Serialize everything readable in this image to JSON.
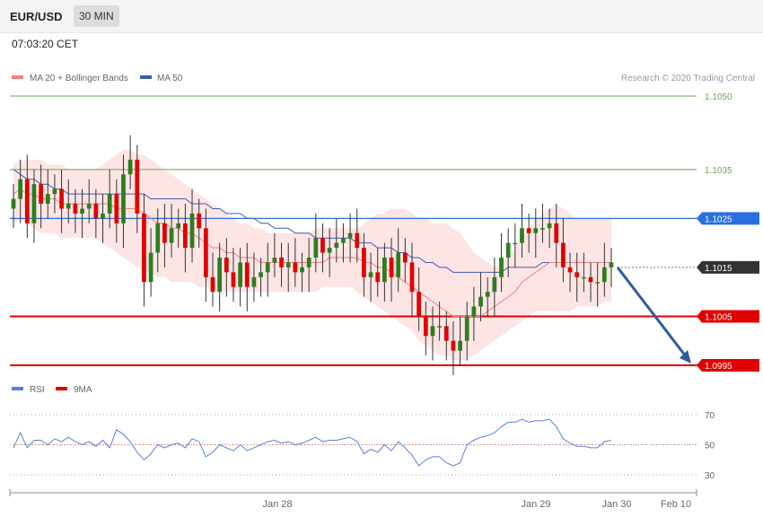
{
  "header": {
    "symbol": "EUR/USD",
    "timeframe": "30 MIN",
    "time": "07:03:20 CET"
  },
  "legend": {
    "ma20_bb": "MA 20 + Bollinger Bands",
    "ma50": "MA 50",
    "copyright": "Research © 2020 Trading Central"
  },
  "rsi_legend": {
    "rsi": "RSI",
    "ma9": "9MA"
  },
  "colors": {
    "bull": "#2e7d1e",
    "bear": "#e00000",
    "band": "#fde0e0",
    "ma20": "#f08080",
    "ma50": "#3a5ea8",
    "support": "#e00000",
    "resistance": "#2a6fe0",
    "green_level": "#6aa84f",
    "current": "#333333"
  },
  "chart_data": [
    {
      "type": "candlestick",
      "title": "EUR/USD 30 MIN",
      "xlabel": "",
      "ylabel": "",
      "ylim": [
        1.0991,
        1.1059
      ],
      "x_ticks": [
        "Jan 28",
        "Jan 29",
        "Jan 30",
        "Feb 10"
      ],
      "y_ticks": [
        1.0995,
        1.1005,
        1.1015,
        1.1025,
        1.1035,
        1.105
      ],
      "levels": [
        {
          "value": 1.105,
          "label": "1.1050",
          "kind": "green"
        },
        {
          "value": 1.1035,
          "label": "1.1035",
          "kind": "green"
        },
        {
          "value": 1.1025,
          "label": "1.1025",
          "kind": "resistance"
        },
        {
          "value": 1.1015,
          "label": "1.1015",
          "kind": "current"
        },
        {
          "value": 1.1005,
          "label": "1.1005",
          "kind": "support"
        },
        {
          "value": 1.0995,
          "label": "1.0995",
          "kind": "support"
        }
      ],
      "forecast_arrow": {
        "from": 1.1015,
        "to": 1.0995
      },
      "closes": [
        1.1029,
        1.1033,
        1.1024,
        1.1032,
        1.1028,
        1.103,
        1.1031,
        1.1027,
        1.1028,
        1.1026,
        1.1027,
        1.1028,
        1.1025,
        1.1026,
        1.103,
        1.1024,
        1.1034,
        1.1037,
        1.1026,
        1.1012,
        1.1018,
        1.1024,
        1.102,
        1.1023,
        1.1024,
        1.1019,
        1.1026,
        1.1023,
        1.1013,
        1.101,
        1.1017,
        1.1014,
        1.1011,
        1.1016,
        1.1011,
        1.1013,
        1.1014,
        1.1016,
        1.1017,
        1.1015,
        1.1016,
        1.1014,
        1.1015,
        1.1017,
        1.1021,
        1.1018,
        1.1019,
        1.102,
        1.1021,
        1.1022,
        1.1019,
        1.1013,
        1.1014,
        1.1012,
        1.1017,
        1.1013,
        1.1018,
        1.1016,
        1.101,
        1.1005,
        1.1001,
        1.1003,
        1.1003,
        1.1,
        1.0998,
        1.1,
        1.1005,
        1.1007,
        1.1009,
        1.101,
        1.1013,
        1.1017,
        1.102,
        1.102,
        1.1023,
        1.1022,
        1.1023,
        1.1023,
        1.1024,
        1.102,
        1.1015,
        1.1014,
        1.1013,
        1.1013,
        1.1012,
        1.1012,
        1.1015,
        1.1016
      ],
      "ma20": [
        1.103,
        1.1031,
        1.103,
        1.103,
        1.1029,
        1.1029,
        1.1029,
        1.1028,
        1.1028,
        1.1028,
        1.1028,
        1.1028,
        1.1028,
        1.1028,
        1.1028,
        1.1027,
        1.1027,
        1.1027,
        1.1027,
        1.1026,
        1.1025,
        1.1024,
        1.1024,
        1.1023,
        1.1023,
        1.1022,
        1.1022,
        1.1021,
        1.102,
        1.1019,
        1.1019,
        1.1018,
        1.1018,
        1.1017,
        1.1017,
        1.1017,
        1.1016,
        1.1016,
        1.1016,
        1.1016,
        1.1016,
        1.1016,
        1.1016,
        1.1016,
        1.1016,
        1.1016,
        1.1017,
        1.1017,
        1.1017,
        1.1017,
        1.1017,
        1.1016,
        1.1016,
        1.1015,
        1.1015,
        1.1014,
        1.1013,
        1.1012,
        1.1011,
        1.101,
        1.1009,
        1.1008,
        1.1007,
        1.1006,
        1.1005,
        1.1005,
        1.1005,
        1.1005,
        1.1005,
        1.1006,
        1.1007,
        1.1008,
        1.1009,
        1.101,
        1.1012,
        1.1013,
        1.1014,
        1.1015,
        1.1016,
        1.1016,
        1.1016,
        1.1016,
        1.1016,
        1.1016,
        1.1016,
        1.1016,
        1.1016,
        1.1016
      ],
      "ma50": [
        1.1035,
        1.1034,
        1.1033,
        1.1033,
        1.1032,
        1.1032,
        1.1031,
        1.1031,
        1.103,
        1.103,
        1.103,
        1.103,
        1.103,
        1.103,
        1.103,
        1.103,
        1.103,
        1.103,
        1.103,
        1.103,
        1.1029,
        1.1029,
        1.1029,
        1.1029,
        1.1029,
        1.1029,
        1.1028,
        1.1028,
        1.1028,
        1.1027,
        1.1027,
        1.1026,
        1.1026,
        1.1026,
        1.1025,
        1.1025,
        1.1024,
        1.1024,
        1.1023,
        1.1023,
        1.1023,
        1.1022,
        1.1022,
        1.1022,
        1.1021,
        1.1021,
        1.1021,
        1.1021,
        1.1021,
        1.1021,
        1.102,
        1.102,
        1.102,
        1.1019,
        1.1019,
        1.1019,
        1.1018,
        1.1018,
        1.1017,
        1.1017,
        1.1016,
        1.1016,
        1.1015,
        1.1015,
        1.1014,
        1.1014,
        1.1014,
        1.1014,
        1.1014,
        1.1014,
        1.1014,
        1.1014,
        1.1015,
        1.1015,
        1.1015,
        1.1015,
        1.1015,
        1.1016,
        1.1016,
        1.1016,
        1.1016,
        1.1016,
        1.1016,
        1.1016,
        1.1016,
        1.1016,
        1.1016,
        1.1016
      ],
      "band_upper": [
        1.1036,
        1.1037,
        1.1037,
        1.1037,
        1.1037,
        1.1036,
        1.1036,
        1.1036,
        1.1035,
        1.1035,
        1.1035,
        1.1035,
        1.1035,
        1.1036,
        1.1037,
        1.1038,
        1.1039,
        1.1039,
        1.1038,
        1.1038,
        1.1037,
        1.1036,
        1.1035,
        1.1034,
        1.1033,
        1.1032,
        1.1031,
        1.103,
        1.1029,
        1.1028,
        1.1027,
        1.1026,
        1.1025,
        1.1024,
        1.1024,
        1.1023,
        1.1023,
        1.1022,
        1.1022,
        1.1022,
        1.1022,
        1.1022,
        1.1022,
        1.1022,
        1.1023,
        1.1023,
        1.1023,
        1.1023,
        1.1023,
        1.1023,
        1.1023,
        1.1024,
        1.1025,
        1.1026,
        1.1026,
        1.1027,
        1.1027,
        1.1027,
        1.1026,
        1.1025,
        1.1025,
        1.1024,
        1.1024,
        1.1024,
        1.1023,
        1.1022,
        1.102,
        1.1018,
        1.1017,
        1.1016,
        1.1015,
        1.1016,
        1.1017,
        1.1019,
        1.1021,
        1.1023,
        1.1025,
        1.1026,
        1.1027,
        1.1028,
        1.1027,
        1.1026,
        1.1025,
        1.1025,
        1.1025,
        1.1025,
        1.1025,
        1.1025
      ],
      "band_lower": [
        1.1024,
        1.1025,
        1.1024,
        1.1023,
        1.1022,
        1.1022,
        1.1022,
        1.1021,
        1.1021,
        1.1021,
        1.1021,
        1.1021,
        1.1021,
        1.102,
        1.1019,
        1.1018,
        1.1017,
        1.1016,
        1.1015,
        1.1014,
        1.1014,
        1.1013,
        1.1013,
        1.1012,
        1.1012,
        1.1012,
        1.1012,
        1.1011,
        1.1011,
        1.101,
        1.101,
        1.101,
        1.101,
        1.101,
        1.101,
        1.101,
        1.101,
        1.101,
        1.101,
        1.101,
        1.101,
        1.101,
        1.101,
        1.101,
        1.101,
        1.1011,
        1.1011,
        1.1011,
        1.1011,
        1.1011,
        1.101,
        1.1009,
        1.1008,
        1.1007,
        1.1006,
        1.1005,
        1.1004,
        1.1003,
        1.1002,
        1.1,
        1.0999,
        1.0998,
        1.0997,
        1.0997,
        1.0996,
        1.0996,
        1.0996,
        1.0997,
        1.0998,
        1.0999,
        1.1,
        1.1001,
        1.1002,
        1.1003,
        1.1004,
        1.1005,
        1.1006,
        1.1006,
        1.1006,
        1.1006,
        1.1006,
        1.1006,
        1.1007,
        1.1007,
        1.1007,
        1.1007,
        1.1008,
        1.1008
      ]
    },
    {
      "type": "line",
      "title": "RSI",
      "ylim": [
        23,
        77
      ],
      "y_ticks": [
        30,
        50,
        70
      ],
      "series": [
        {
          "name": "RSI",
          "values": [
            48,
            58,
            48,
            53,
            53,
            50,
            54,
            52,
            55,
            52,
            50,
            52,
            49,
            53,
            48,
            60,
            57,
            52,
            45,
            40,
            44,
            50,
            48,
            50,
            51,
            48,
            54,
            52,
            42,
            45,
            50,
            48,
            46,
            50,
            46,
            48,
            50,
            52,
            53,
            51,
            52,
            50,
            51,
            53,
            55,
            52,
            53,
            53,
            54,
            55,
            52,
            44,
            47,
            45,
            50,
            46,
            52,
            48,
            43,
            36,
            40,
            42,
            42,
            38,
            36,
            38,
            50,
            53,
            55,
            56,
            58,
            62,
            65,
            65,
            67,
            65,
            66,
            66,
            67,
            62,
            54,
            51,
            49,
            49,
            48,
            48,
            52,
            53
          ]
        },
        {
          "name": "9MA",
          "values": [
            50,
            50,
            50,
            50,
            50,
            50,
            50,
            50,
            50,
            50,
            50,
            50,
            50,
            50,
            50,
            50,
            50,
            50,
            50,
            50,
            50,
            50,
            50,
            50,
            50,
            50,
            50,
            50,
            50,
            50,
            50,
            50,
            50,
            50,
            50,
            50,
            50,
            50,
            50,
            50,
            50,
            50,
            50,
            50,
            50,
            50,
            50,
            50,
            50,
            50,
            50,
            50,
            50,
            50,
            50,
            50,
            50,
            50,
            50,
            50,
            50,
            50,
            50,
            50,
            50,
            50,
            50,
            50,
            50,
            50,
            50,
            50,
            50,
            50,
            50,
            50,
            50,
            50,
            50,
            50,
            50,
            50,
            50,
            50,
            50,
            50,
            50,
            50
          ]
        }
      ]
    }
  ]
}
